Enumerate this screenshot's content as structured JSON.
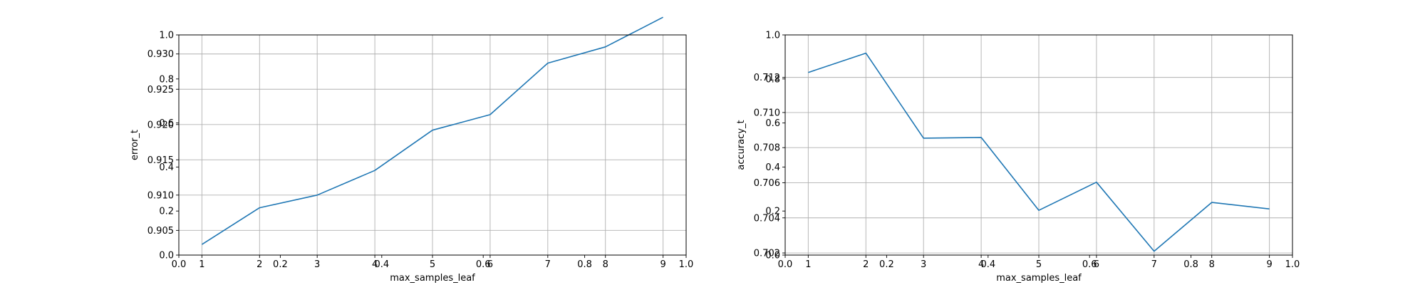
{
  "chart_data": [
    {
      "type": "line",
      "title": "",
      "xlabel": "max_samples_leaf",
      "ylabel": "error_t",
      "x": [
        1,
        2,
        3,
        4,
        5,
        6,
        7,
        8,
        9
      ],
      "series": [
        {
          "values": [
            0.903,
            0.9082,
            0.91,
            0.9135,
            0.9192,
            0.9214,
            0.9287,
            0.931,
            0.9352
          ]
        }
      ],
      "xlim": [
        0.6,
        9.4
      ],
      "ylim": [
        0.9015,
        0.9327
      ],
      "xticks": [
        "1",
        "2",
        "3",
        "4",
        "5",
        "6",
        "7",
        "8",
        "9"
      ],
      "yticks": [
        "0.905",
        "0.910",
        "0.915",
        "0.920",
        "0.925",
        "0.930"
      ],
      "overlay_xticks": [
        "0.0",
        "0.2",
        "0.4",
        "0.6",
        "0.8",
        "1.0"
      ],
      "overlay_yticks": [
        "0.0",
        "0.2",
        "0.4",
        "0.6",
        "0.8",
        "1.0"
      ],
      "grid": true,
      "color": "#1f77b4"
    },
    {
      "type": "line",
      "title": "",
      "xlabel": "max_samples_leaf",
      "ylabel": "accuracy_t",
      "x": [
        1,
        2,
        3,
        4,
        5,
        6,
        7,
        8,
        9
      ],
      "series": [
        {
          "values": [
            0.71228,
            0.71338,
            0.70854,
            0.70858,
            0.70443,
            0.70603,
            0.7021,
            0.70488,
            0.70451
          ]
        }
      ],
      "xlim": [
        0.6,
        9.4
      ],
      "ylim": [
        0.70188,
        0.71442
      ],
      "xticks": [
        "1",
        "2",
        "3",
        "4",
        "5",
        "6",
        "7",
        "8",
        "9"
      ],
      "yticks": [
        "0.702",
        "0.704",
        "0.706",
        "0.708",
        "0.710",
        "0.712"
      ],
      "overlay_xticks": [
        "0.0",
        "0.2",
        "0.4",
        "0.6",
        "0.8",
        "1.0"
      ],
      "overlay_yticks": [
        "0.0",
        "0.2",
        "0.4",
        "0.6",
        "0.8",
        "1.0"
      ],
      "grid": true,
      "color": "#1f77b4"
    }
  ]
}
